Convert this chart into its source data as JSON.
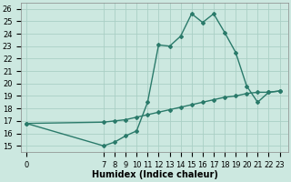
{
  "curve1_x": [
    0,
    7,
    8,
    9,
    10,
    11,
    12,
    13,
    14,
    15,
    16,
    17,
    18,
    19,
    20,
    21,
    22,
    23
  ],
  "curve1_y": [
    16.8,
    15.0,
    15.3,
    15.8,
    16.2,
    18.5,
    23.1,
    23.0,
    23.8,
    25.6,
    24.9,
    25.6,
    24.1,
    22.5,
    19.8,
    18.5,
    19.3,
    19.4
  ],
  "curve2_x": [
    0,
    7,
    8,
    9,
    10,
    11,
    12,
    13,
    14,
    15,
    16,
    17,
    18,
    19,
    20,
    21,
    22,
    23
  ],
  "curve2_y": [
    16.8,
    16.9,
    17.0,
    17.1,
    17.3,
    17.5,
    17.7,
    17.9,
    18.1,
    18.3,
    18.5,
    18.7,
    18.9,
    19.0,
    19.2,
    19.3,
    19.3,
    19.4
  ],
  "line_color": "#2a7a6a",
  "bg_color": "#cce8e0",
  "grid_color": "#aacfc5",
  "ylim": [
    14.5,
    26.5
  ],
  "yticks": [
    15,
    16,
    17,
    18,
    19,
    20,
    21,
    22,
    23,
    24,
    25,
    26
  ],
  "x_positions": [
    0,
    7,
    8,
    9,
    10,
    11,
    12,
    13,
    14,
    15,
    16,
    17,
    18,
    19,
    20,
    21,
    22,
    23
  ],
  "xlim": [
    -0.5,
    23.8
  ],
  "xlabel": "Humidex (Indice chaleur)",
  "xlabel_fontsize": 7,
  "tick_fontsize": 6,
  "figwidth": 3.2,
  "figheight": 2.0,
  "dpi": 100
}
